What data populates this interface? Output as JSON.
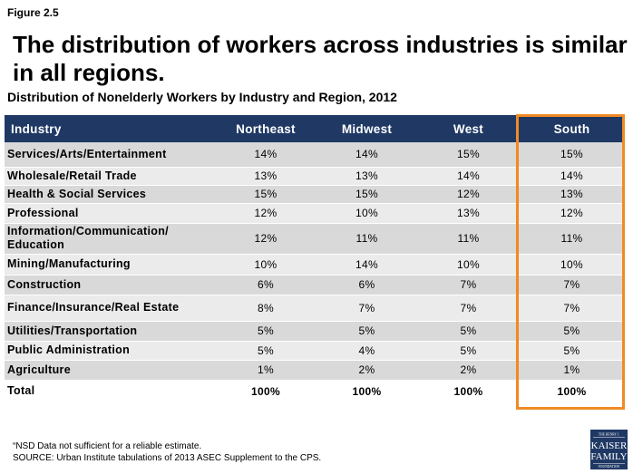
{
  "figure_label": "Figure 2.5",
  "headline": "The distribution of workers across industries is similar in all regions.",
  "subtitle": "Distribution of Nonelderly Workers by Industry and Region, 2012",
  "table": {
    "headers": [
      "Industry",
      "Northeast",
      "Midwest",
      "West",
      "South"
    ],
    "rows": [
      [
        "Services/Arts/Entertainment",
        "14%",
        "14%",
        "15%",
        "15%"
      ],
      [
        "Wholesale/Retail Trade",
        "13%",
        "13%",
        "14%",
        "14%"
      ],
      [
        "Health & Social Services",
        "15%",
        "15%",
        "12%",
        "13%"
      ],
      [
        "Professional",
        "12%",
        "10%",
        "13%",
        "12%"
      ],
      [
        "Information/Communication/ Education",
        "12%",
        "11%",
        "11%",
        "11%"
      ],
      [
        "Mining/Manufacturing",
        "10%",
        "14%",
        "10%",
        "10%"
      ],
      [
        "Construction",
        "6%",
        "6%",
        "7%",
        "7%"
      ],
      [
        "Finance/Insurance/Real Estate",
        "8%",
        "7%",
        "7%",
        "7%"
      ],
      [
        "Utilities/Transportation",
        "5%",
        "5%",
        "5%",
        "5%"
      ],
      [
        "Public Administration",
        "5%",
        "4%",
        "5%",
        "5%"
      ],
      [
        "Agriculture",
        "1%",
        "2%",
        "2%",
        "1%"
      ],
      [
        "Total",
        "100%",
        "100%",
        "100%",
        "100%"
      ]
    ]
  },
  "footnotes": {
    "nsd": "“NSD Data not sufficient for a reliable estimate.",
    "source": "SOURCE: Urban Institute tabulations of 2013 ASEC Supplement to the CPS."
  },
  "logo": {
    "line1": "THE HENRY J.",
    "line2": "KAISER",
    "line3": "FAMILY",
    "line4": "FOUNDATION"
  },
  "colors": {
    "header_bg": "#1f3864",
    "highlight": "#f08a24",
    "row_dark": "#d9d9d9",
    "row_light": "#ebebeb"
  }
}
